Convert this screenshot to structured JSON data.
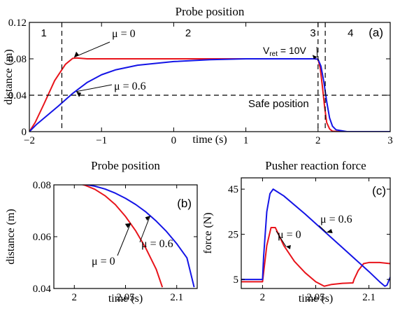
{
  "colors": {
    "red": "#e8141b",
    "blue": "#1414e6",
    "black": "#000000"
  },
  "chart_data": [
    {
      "type": "line",
      "panel": "a",
      "title": "Probe position",
      "panel_label": "(a)",
      "xlabel": "time (s)",
      "ylabel": "distance (m)",
      "xlim": [
        -2,
        3
      ],
      "ylim": [
        0,
        0.12
      ],
      "xticks": [
        -2,
        -1,
        0,
        1,
        2,
        3
      ],
      "yticks": [
        0,
        0.04,
        0.08,
        0.12
      ],
      "xtick_labels": [
        "−2",
        "−1",
        "0",
        "1",
        "2",
        "3"
      ],
      "ytick_labels": [
        "0",
        "0.04",
        "0.08",
        "0.12"
      ],
      "phase_labels": [
        "1",
        "2",
        "3",
        "4"
      ],
      "phase_boundaries": [
        -1.55,
        2.0,
        2.1
      ],
      "safe_position": 0.04,
      "annotations": {
        "safe": "Safe position",
        "vret_main": "V",
        "vret_sub": "ret",
        "vret_rest": " = 10V"
      },
      "series": [
        {
          "name": "μ = 0",
          "color": "#e8141b",
          "x": [
            -2,
            -1.92,
            -1.8,
            -1.65,
            -1.5,
            -1.4,
            -1.35,
            -1.2,
            0,
            1,
            1.95,
            2.0,
            2.03,
            2.06,
            2.09,
            2.12,
            2.16,
            2.2,
            2.3,
            3
          ],
          "y": [
            0,
            0.01,
            0.03,
            0.056,
            0.074,
            0.0805,
            0.081,
            0.08,
            0.08,
            0.08,
            0.08,
            0.0795,
            0.07,
            0.05,
            0.028,
            0.01,
            0.003,
            0.0005,
            0,
            0
          ]
        },
        {
          "name": "μ = 0.6",
          "color": "#1414e6",
          "x": [
            -2,
            -1.9,
            -1.75,
            -1.6,
            -1.4,
            -1.2,
            -1.0,
            -0.8,
            -0.5,
            0,
            0.5,
            1,
            1.95,
            2.0,
            2.04,
            2.08,
            2.12,
            2.16,
            2.2,
            2.25,
            2.4,
            3
          ],
          "y": [
            0,
            0.008,
            0.018,
            0.028,
            0.042,
            0.054,
            0.0625,
            0.068,
            0.073,
            0.077,
            0.079,
            0.08,
            0.08,
            0.0795,
            0.072,
            0.055,
            0.033,
            0.015,
            0.006,
            0.002,
            0,
            0
          ]
        }
      ]
    },
    {
      "type": "line",
      "panel": "b",
      "title": "Probe position",
      "panel_label": "(b)",
      "xlabel": "time (s)",
      "ylabel": "distance (m)",
      "xlim": [
        1.98,
        2.12
      ],
      "ylim": [
        0.04,
        0.08
      ],
      "xticks": [
        2,
        2.05,
        2.1
      ],
      "yticks": [
        0.04,
        0.06,
        0.08
      ],
      "xtick_labels": [
        "2",
        "2.05",
        "2.1"
      ],
      "ytick_labels": [
        "0.04",
        "0.06",
        "0.08"
      ],
      "series": [
        {
          "name": "μ = 0",
          "color": "#e8141b",
          "x": [
            1.98,
            2.0,
            2.005,
            2.01,
            2.02,
            2.03,
            2.04,
            2.05,
            2.06,
            2.07,
            2.08,
            2.086
          ],
          "y": [
            0.0805,
            0.0805,
            0.0804,
            0.0799,
            0.0783,
            0.0758,
            0.0724,
            0.0678,
            0.0622,
            0.0554,
            0.0474,
            0.0405
          ]
        },
        {
          "name": "μ = 0.6",
          "color": "#1414e6",
          "x": [
            1.98,
            2.0,
            2.005,
            2.01,
            2.02,
            2.03,
            2.04,
            2.05,
            2.06,
            2.07,
            2.08,
            2.09,
            2.1,
            2.11,
            2.117
          ],
          "y": [
            0.0805,
            0.0805,
            0.0804,
            0.0802,
            0.0795,
            0.0784,
            0.0768,
            0.0748,
            0.0724,
            0.0695,
            0.066,
            0.062,
            0.0573,
            0.0518,
            0.0405
          ]
        }
      ]
    },
    {
      "type": "line",
      "panel": "c",
      "title": "Pusher reaction force",
      "panel_label": "(c)",
      "xlabel": "time (s)",
      "ylabel": "force (N)",
      "xlim": [
        1.98,
        2.12
      ],
      "ylim": [
        1,
        50
      ],
      "xticks": [
        2,
        2.05,
        2.1
      ],
      "yticks": [
        5,
        25,
        45
      ],
      "xtick_labels": [
        "2",
        "2.05",
        "2.1"
      ],
      "ytick_labels": [
        "5",
        "25",
        "45"
      ],
      "series": [
        {
          "name": "μ = 0",
          "color": "#e8141b",
          "x": [
            1.98,
            2.0,
            2.001,
            2.004,
            2.008,
            2.012,
            2.02,
            2.03,
            2.04,
            2.05,
            2.058,
            2.065,
            2.075,
            2.085,
            2.086,
            2.09,
            2.095,
            2.1,
            2.11,
            2.12
          ],
          "y": [
            4,
            4,
            8,
            20,
            28,
            28,
            20,
            13,
            8,
            4,
            2,
            2.8,
            3.3,
            3.5,
            5,
            9,
            12,
            12.5,
            12.5,
            12
          ]
        },
        {
          "name": "μ = 0.6",
          "color": "#1414e6",
          "x": [
            1.98,
            2.0,
            2.001,
            2.004,
            2.007,
            2.01,
            2.02,
            2.04,
            2.06,
            2.08,
            2.1,
            2.11,
            2.115,
            2.117,
            2.12
          ],
          "y": [
            5,
            5,
            15,
            35,
            43,
            45,
            42,
            34,
            25.5,
            17,
            8.5,
            4,
            2,
            2.5,
            6
          ]
        }
      ]
    }
  ]
}
